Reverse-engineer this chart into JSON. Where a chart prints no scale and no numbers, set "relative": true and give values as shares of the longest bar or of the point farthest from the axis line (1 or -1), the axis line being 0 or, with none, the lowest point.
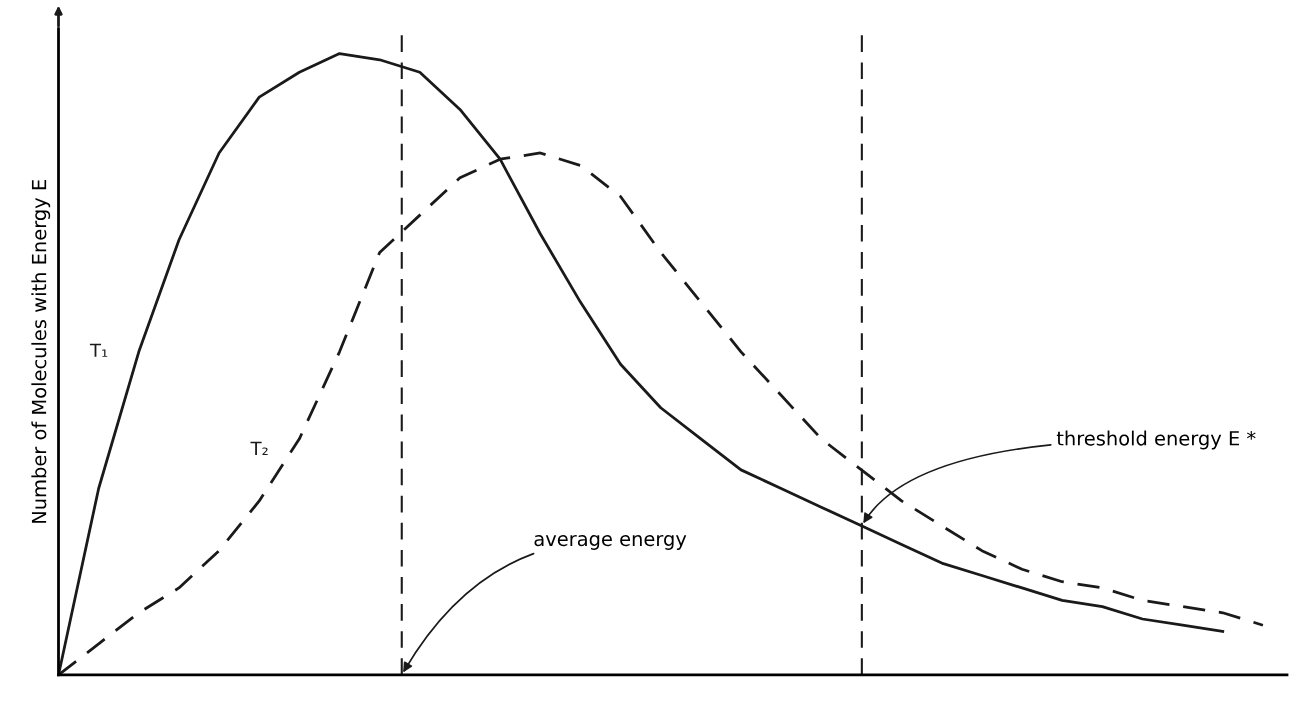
{
  "chart_data": {
    "type": "line",
    "relative": true,
    "ylabel": "Number of Molecules with Energy E",
    "categories": [
      null,
      null,
      null,
      null,
      null,
      null,
      null,
      null,
      null,
      null,
      null,
      null,
      null,
      null,
      null,
      null,
      null,
      null,
      null,
      null,
      null,
      null,
      null,
      null,
      null,
      null,
      null,
      null,
      null,
      null,
      null
    ],
    "series": [
      {
        "name": "T₁",
        "color": "#1a1a1a",
        "line_style": "solid",
        "values": [
          0,
          0.3,
          0.52,
          0.7,
          0.84,
          0.93,
          0.97,
          1.0,
          0.99,
          0.97,
          0.91,
          0.83,
          0.71,
          0.6,
          0.5,
          0.43,
          0.38,
          0.33,
          0.3,
          0.27,
          0.24,
          0.21,
          0.18,
          0.16,
          0.14,
          0.12,
          0.11,
          0.09,
          0.08,
          0.07,
          null
        ]
      },
      {
        "name": "T₂",
        "color": "#1a1a1a",
        "line_style": "dashed",
        "values": [
          0,
          0.05,
          0.1,
          0.14,
          0.2,
          0.28,
          0.38,
          0.52,
          0.68,
          0.74,
          0.8,
          0.83,
          0.84,
          0.82,
          0.77,
          0.68,
          0.6,
          0.52,
          0.45,
          0.38,
          0.33,
          0.28,
          0.24,
          0.2,
          0.17,
          0.15,
          0.14,
          0.12,
          0.11,
          0.1,
          0.08
        ]
      }
    ],
    "annotations": [
      "average energy",
      "threshold energy E *"
    ],
    "legend": false,
    "marker": "none"
  }
}
